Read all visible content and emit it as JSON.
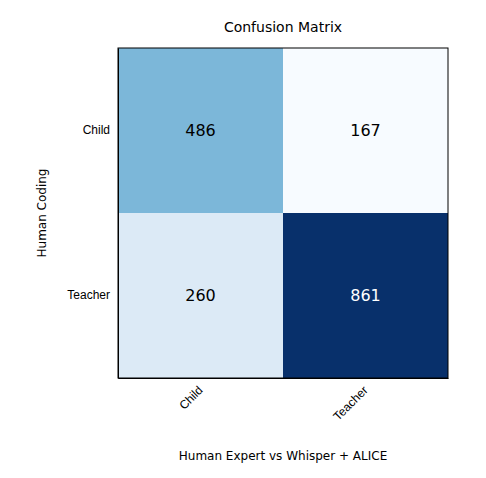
{
  "chart_data": {
    "type": "heatmap",
    "title": "Confusion Matrix",
    "xlabel": "Human Expert vs Whisper + ALICE",
    "ylabel": "Human Coding",
    "x_categories": [
      "Child",
      "Teacher"
    ],
    "y_categories": [
      "Child",
      "Teacher"
    ],
    "values": [
      [
        486,
        167
      ],
      [
        260,
        861
      ]
    ],
    "data_labels": true
  }
}
